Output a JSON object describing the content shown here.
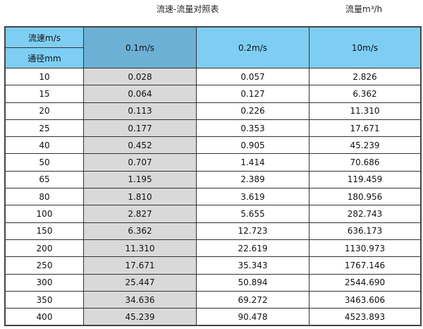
{
  "title": "流速-流量对照表",
  "unit": "流量m³/h",
  "header": {
    "velocity_label": "流速m/s",
    "diameter_label": "通径mm",
    "columns": [
      "0.1m/s",
      "0.2m/s",
      "10m/s"
    ]
  },
  "colors": {
    "header": "#7ecef4",
    "header_highlight": "#6cb0d6",
    "highlight_column": "#d9d9d9"
  },
  "rows": [
    [
      "10",
      "0.028",
      "0.057",
      "2.826"
    ],
    [
      "15",
      "0.064",
      "0.127",
      "6.362"
    ],
    [
      "20",
      "0.113",
      "0.226",
      "11.310"
    ],
    [
      "25",
      "0.177",
      "0.353",
      "17.671"
    ],
    [
      "40",
      "0.452",
      "0.905",
      "45.239"
    ],
    [
      "50",
      "0.707",
      "1.414",
      "70.686"
    ],
    [
      "65",
      "1.195",
      "2.389",
      "119.459"
    ],
    [
      "80",
      "1.810",
      "3.619",
      "180.956"
    ],
    [
      "100",
      "2.827",
      "5.655",
      "282.743"
    ],
    [
      "150",
      "6.362",
      "12.723",
      "636.173"
    ],
    [
      "200",
      "11.310",
      "22.619",
      "1130.973"
    ],
    [
      "250",
      "17.671",
      "35.343",
      "1767.146"
    ],
    [
      "300",
      "25.447",
      "50.894",
      "2544.690"
    ],
    [
      "350",
      "34.636",
      "69.272",
      "3463.606"
    ],
    [
      "400",
      "45.239",
      "90.478",
      "4523.893"
    ]
  ]
}
